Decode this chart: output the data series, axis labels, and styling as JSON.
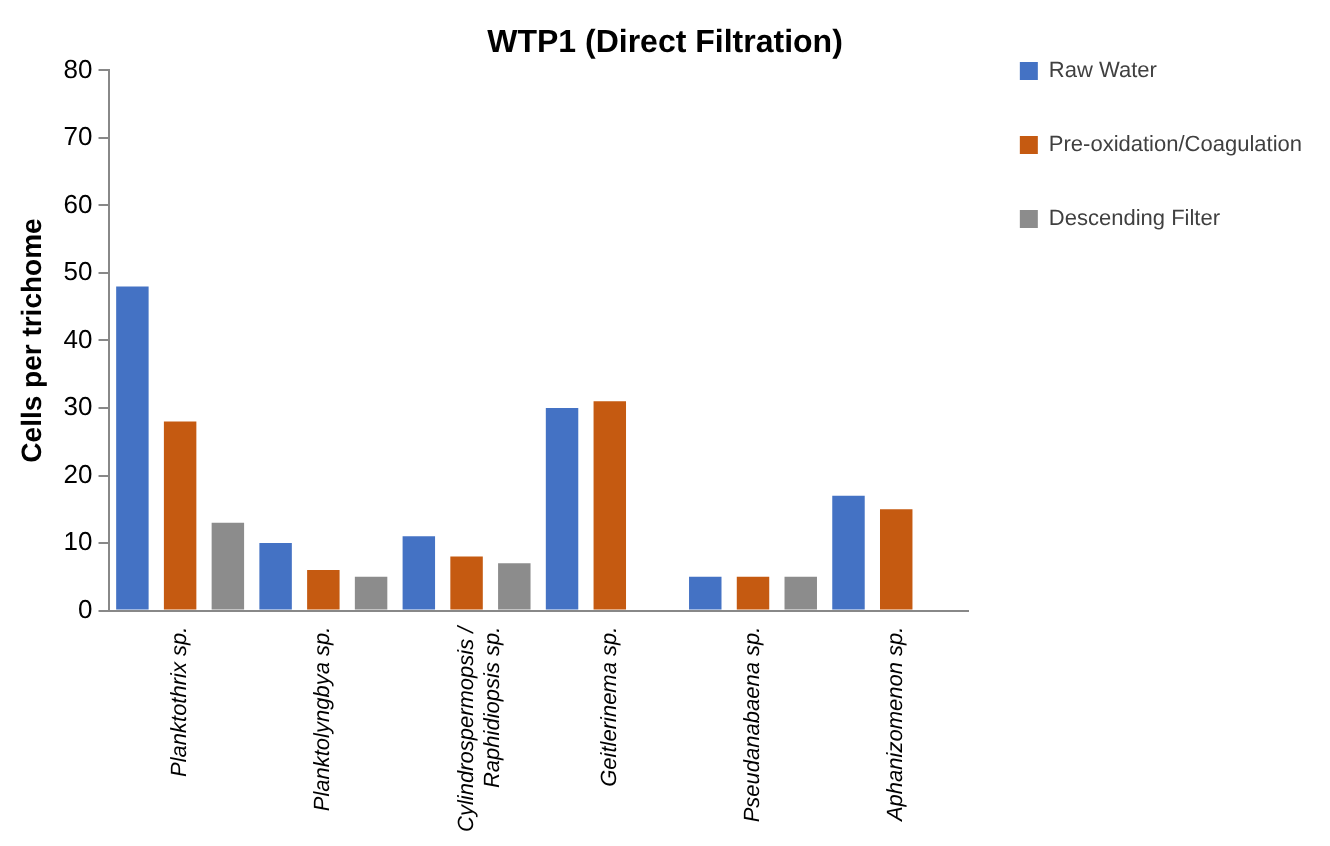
{
  "chart_data": {
    "type": "bar",
    "title": "WTP1 (Direct Filtration)",
    "ylabel": "Cells per trichome",
    "categories": [
      "Planktothrix sp.",
      "Planktolyngbya sp.",
      "Cylindrospermopsis /\nRaphidiopsis sp.",
      "Geitlerinema sp.",
      "Pseudanabaena sp.",
      "Aphanizomenon sp."
    ],
    "series": [
      {
        "name": "Raw Water",
        "color": "#4472c4",
        "values": [
          48,
          10,
          11,
          30,
          5,
          17
        ]
      },
      {
        "name": "Pre-oxidation/Coagulation",
        "color": "#c55a11",
        "values": [
          28,
          6,
          8,
          31,
          5,
          15
        ]
      },
      {
        "name": "Descending Filter",
        "color": "#8c8c8c",
        "values": [
          13,
          5,
          7,
          null,
          5,
          null
        ]
      }
    ],
    "ylim": [
      0,
      80
    ],
    "yticks": [
      0,
      10,
      20,
      30,
      40,
      50,
      60,
      70,
      80
    ],
    "grid": false,
    "legend": "top right"
  }
}
